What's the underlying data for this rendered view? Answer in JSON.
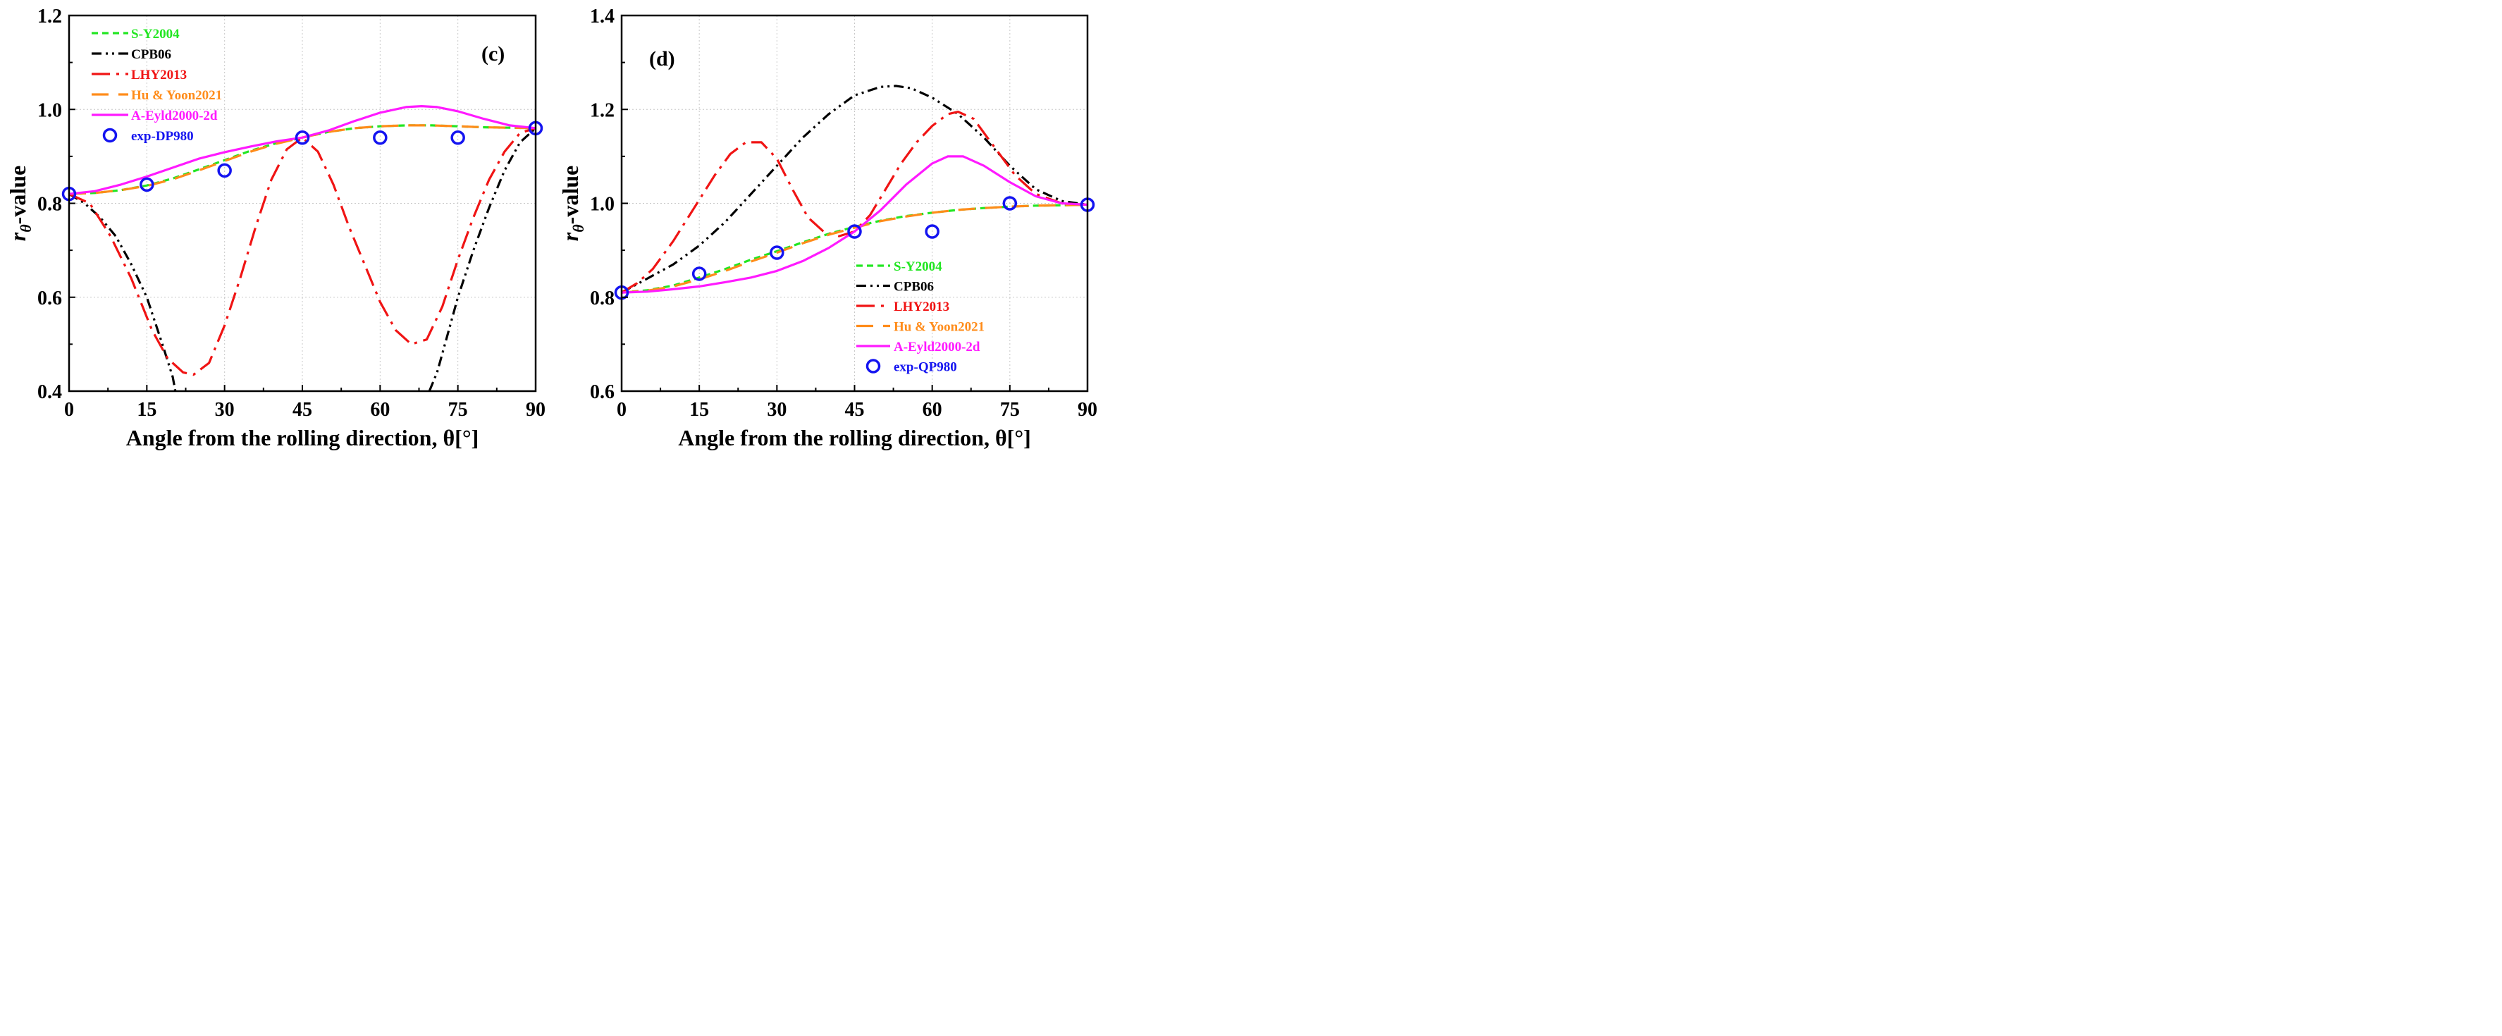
{
  "chart_data": [
    {
      "type": "line",
      "tag": "(c)",
      "xlabel": "Angle from the rolling direction, θ[°]",
      "ylabel": "rθ-value",
      "ylabel_main": "r",
      "ylabel_sub": "θ",
      "ylabel_rest": "-value",
      "xlim": [
        0,
        90
      ],
      "ylim": [
        0.4,
        1.2
      ],
      "xticks": [
        0,
        15,
        30,
        45,
        60,
        75,
        90
      ],
      "xtick_labels": [
        "0",
        "15",
        "30",
        "45",
        "60",
        "75",
        "90"
      ],
      "yticks": [
        0.4,
        0.6,
        0.8,
        1.0,
        1.2
      ],
      "ytick_labels": [
        "0.4",
        "0.6",
        "0.8",
        "1.0",
        "1.2"
      ],
      "grid": true,
      "legend_position": "top-left",
      "series": [
        {
          "name": "S-Y2004",
          "color": "#22e622",
          "dash": "short-dash",
          "x": [
            0,
            5,
            10,
            15,
            20,
            25,
            30,
            35,
            40,
            45,
            50,
            55,
            60,
            65,
            70,
            75,
            80,
            85,
            90
          ],
          "y": [
            0.82,
            0.822,
            0.828,
            0.838,
            0.853,
            0.872,
            0.892,
            0.912,
            0.928,
            0.94,
            0.952,
            0.96,
            0.964,
            0.966,
            0.966,
            0.964,
            0.962,
            0.961,
            0.96
          ]
        },
        {
          "name": "CPB06",
          "color": "#000000",
          "dash": "dash-dot-dot",
          "x": [
            0,
            3,
            6,
            9,
            12,
            15,
            18,
            20,
            20.5
          ],
          "y": [
            0.82,
            0.8,
            0.77,
            0.73,
            0.67,
            0.6,
            0.5,
            0.43,
            0.4
          ],
          "x2": [
            69.5,
            71,
            73,
            75,
            78,
            81,
            84,
            87,
            90
          ],
          "y2": [
            0.4,
            0.44,
            0.52,
            0.6,
            0.7,
            0.79,
            0.87,
            0.93,
            0.96
          ]
        },
        {
          "name": "LHY2013",
          "color": "#f01414",
          "dash": "long-dash-dot",
          "x": [
            0,
            4,
            8,
            12,
            16,
            19,
            22,
            24,
            27,
            30,
            33,
            36,
            39,
            42,
            45,
            48,
            51,
            54,
            57,
            60,
            63,
            66,
            69,
            72,
            75,
            78,
            81,
            84,
            87,
            90
          ],
          "y": [
            0.82,
            0.8,
            0.73,
            0.64,
            0.53,
            0.47,
            0.44,
            0.435,
            0.46,
            0.54,
            0.64,
            0.75,
            0.85,
            0.915,
            0.94,
            0.91,
            0.84,
            0.75,
            0.67,
            0.59,
            0.53,
            0.5,
            0.51,
            0.58,
            0.68,
            0.77,
            0.85,
            0.91,
            0.95,
            0.96
          ]
        },
        {
          "name": "Hu & Yoon2021",
          "color": "#ff8c1a",
          "dash": "long-dash",
          "x": [
            0,
            5,
            10,
            15,
            20,
            25,
            30,
            35,
            40,
            45,
            50,
            55,
            60,
            65,
            70,
            75,
            80,
            85,
            90
          ],
          "y": [
            0.82,
            0.822,
            0.828,
            0.837,
            0.851,
            0.87,
            0.89,
            0.91,
            0.927,
            0.94,
            0.952,
            0.96,
            0.964,
            0.966,
            0.966,
            0.964,
            0.962,
            0.961,
            0.96
          ]
        },
        {
          "name": "A-Eyld2000-2d",
          "color": "#ff1aff",
          "dash": "solid",
          "x": [
            0,
            5,
            10,
            15,
            20,
            25,
            30,
            35,
            40,
            45,
            50,
            55,
            60,
            65,
            68,
            71,
            75,
            80,
            85,
            90
          ],
          "y": [
            0.82,
            0.826,
            0.84,
            0.857,
            0.876,
            0.895,
            0.909,
            0.921,
            0.932,
            0.94,
            0.955,
            0.975,
            0.993,
            1.005,
            1.007,
            1.005,
            0.996,
            0.98,
            0.966,
            0.96
          ]
        },
        {
          "name": "exp-DP980",
          "color": "#1414f0",
          "marker": "circle",
          "x": [
            0,
            15,
            30,
            45,
            60,
            75,
            90
          ],
          "y": [
            0.82,
            0.84,
            0.87,
            0.94,
            0.94,
            0.94,
            0.96
          ]
        }
      ]
    },
    {
      "type": "line",
      "tag": "(d)",
      "xlabel": "Angle from the rolling direction, θ[°]",
      "ylabel": "rθ-value",
      "ylabel_main": "r",
      "ylabel_sub": "θ",
      "ylabel_rest": "-value",
      "xlim": [
        0,
        90
      ],
      "ylim": [
        0.6,
        1.4
      ],
      "xticks": [
        0,
        15,
        30,
        45,
        60,
        75,
        90
      ],
      "xtick_labels": [
        "0",
        "15",
        "30",
        "45",
        "60",
        "75",
        "90"
      ],
      "yticks": [
        0.6,
        0.8,
        1.0,
        1.2,
        1.4
      ],
      "ytick_labels": [
        "0.6",
        "0.8",
        "1.0",
        "1.2",
        "1.4"
      ],
      "grid": true,
      "legend_position": "bottom-right",
      "series": [
        {
          "name": "S-Y2004",
          "color": "#22e622",
          "dash": "short-dash",
          "x": [
            0,
            5,
            10,
            15,
            20,
            25,
            30,
            35,
            40,
            45,
            50,
            55,
            60,
            65,
            70,
            75,
            80,
            85,
            90
          ],
          "y": [
            0.81,
            0.815,
            0.825,
            0.842,
            0.86,
            0.88,
            0.898,
            0.917,
            0.935,
            0.95,
            0.963,
            0.973,
            0.98,
            0.986,
            0.99,
            0.993,
            0.995,
            0.996,
            0.997
          ]
        },
        {
          "name": "CPB06",
          "color": "#000000",
          "dash": "dash-dot-dot",
          "x": [
            0,
            5,
            10,
            15,
            20,
            25,
            30,
            35,
            40,
            45,
            50,
            53,
            56,
            60,
            65,
            70,
            75,
            80,
            85,
            90
          ],
          "y": [
            0.81,
            0.84,
            0.87,
            0.91,
            0.96,
            1.02,
            1.08,
            1.14,
            1.19,
            1.23,
            1.248,
            1.25,
            1.245,
            1.225,
            1.19,
            1.14,
            1.08,
            1.03,
            1.005,
            0.997
          ]
        },
        {
          "name": "LHY2013",
          "color": "#f01414",
          "dash": "long-dash-dot",
          "x": [
            0,
            3,
            6,
            10,
            14,
            18,
            21,
            24,
            27,
            30,
            33,
            36,
            39,
            42,
            45,
            48,
            51,
            54,
            57,
            60,
            63,
            65,
            68,
            72,
            76,
            80,
            85,
            90
          ],
          "y": [
            0.81,
            0.83,
            0.86,
            0.92,
            0.99,
            1.06,
            1.105,
            1.13,
            1.13,
            1.095,
            1.03,
            0.97,
            0.94,
            0.93,
            0.94,
            0.975,
            1.03,
            1.085,
            1.13,
            1.165,
            1.19,
            1.195,
            1.18,
            1.12,
            1.06,
            1.02,
            1.0,
            0.997
          ]
        },
        {
          "name": "Hu & Yoon2021",
          "color": "#ff8c1a",
          "dash": "long-dash",
          "x": [
            0,
            5,
            10,
            15,
            20,
            25,
            30,
            35,
            40,
            45,
            50,
            55,
            60,
            65,
            70,
            75,
            80,
            85,
            90
          ],
          "y": [
            0.81,
            0.814,
            0.823,
            0.838,
            0.856,
            0.876,
            0.895,
            0.915,
            0.933,
            0.948,
            0.962,
            0.972,
            0.98,
            0.986,
            0.99,
            0.993,
            0.995,
            0.996,
            0.997
          ]
        },
        {
          "name": "A-Eyld2000-2d",
          "color": "#ff1aff",
          "dash": "solid",
          "x": [
            0,
            5,
            10,
            15,
            20,
            25,
            30,
            35,
            40,
            45,
            50,
            55,
            60,
            63,
            66,
            70,
            75,
            80,
            85,
            90
          ],
          "y": [
            0.81,
            0.812,
            0.817,
            0.823,
            0.832,
            0.842,
            0.856,
            0.877,
            0.905,
            0.94,
            0.985,
            1.04,
            1.085,
            1.1,
            1.1,
            1.08,
            1.045,
            1.015,
            1.0,
            0.997
          ]
        },
        {
          "name": "exp-QP980",
          "color": "#1414f0",
          "marker": "circle",
          "x": [
            0,
            15,
            30,
            45,
            60,
            75,
            90
          ],
          "y": [
            0.81,
            0.85,
            0.895,
            0.94,
            0.94,
            1.0,
            0.997
          ]
        }
      ]
    }
  ]
}
